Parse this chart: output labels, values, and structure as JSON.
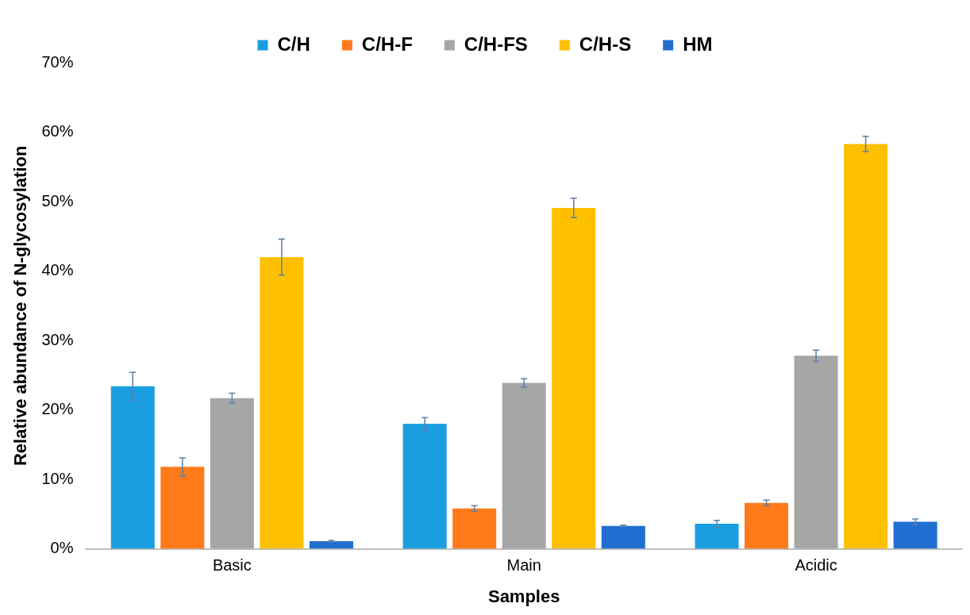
{
  "chart_data": {
    "type": "bar",
    "xlabel": "Samples",
    "ylabel": "Relative abundance of N-glycosylation",
    "categories": [
      "Basic",
      "Main",
      "Acidic"
    ],
    "series": [
      {
        "name": "C/H",
        "color": "#1a9ee0",
        "values": [
          23.4,
          18.0,
          3.6
        ],
        "errors": [
          2.0,
          0.9,
          0.5
        ]
      },
      {
        "name": "C/H-F",
        "color": "#ff7a1a",
        "values": [
          11.8,
          5.8,
          6.6
        ],
        "errors": [
          1.3,
          0.4,
          0.4
        ]
      },
      {
        "name": "C/H-FS",
        "color": "#a6a6a6",
        "values": [
          21.7,
          23.9,
          27.8
        ],
        "errors": [
          0.7,
          0.6,
          0.8
        ]
      },
      {
        "name": "C/H-S",
        "color": "#ffc000",
        "values": [
          42.0,
          49.1,
          58.3
        ],
        "errors": [
          2.6,
          1.4,
          1.1
        ]
      },
      {
        "name": "HM",
        "color": "#1f6fd0",
        "values": [
          1.1,
          3.3,
          3.9
        ],
        "errors": [
          0.1,
          0.1,
          0.4
        ]
      }
    ],
    "ylim": [
      0,
      70
    ],
    "yticks": [
      {
        "value": 0,
        "label": "0%"
      },
      {
        "value": 10,
        "label": "10%"
      },
      {
        "value": 20,
        "label": "20%"
      },
      {
        "value": 30,
        "label": "30%"
      },
      {
        "value": 40,
        "label": "40%"
      },
      {
        "value": 50,
        "label": "50%"
      },
      {
        "value": 60,
        "label": "60%"
      },
      {
        "value": 70,
        "label": "70%"
      }
    ],
    "grid": false,
    "legend": "top"
  }
}
